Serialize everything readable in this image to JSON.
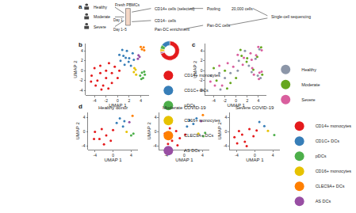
{
  "panel_labels": [
    "a",
    "b",
    "c",
    "d"
  ],
  "schematic": {
    "groups": [
      "Healthy",
      "Moderate",
      "Severe"
    ],
    "days": [
      "Day 1",
      "Day 1–5"
    ],
    "steps": [
      "Fresh PBMCs",
      "CD14+ cells (selected)",
      "CD14− cells",
      "Pan-DC enrichment",
      "Pooling",
      "20,000 cells",
      "Pan-DC cells",
      "Single-cell sequencing"
    ]
  },
  "chart_data": [
    {
      "type": "scatter",
      "marker": "circle",
      "grid": false,
      "x_label": "UMAP 1",
      "y_label": "UMAP 2",
      "xlim": [
        -5.5,
        5.5
      ],
      "ylim": [
        -5,
        5.5
      ],
      "xticks": [
        -4,
        -2,
        0,
        2,
        4
      ],
      "yticks": [
        -4,
        -2,
        0,
        2,
        4
      ],
      "series": [
        {
          "name": "CD14+ monocytes",
          "color": "#e41a1c",
          "values": [
            [
              -4.5,
              -1
            ],
            [
              -4,
              0.5
            ],
            [
              -3.5,
              -2
            ],
            [
              -3,
              -0.5
            ],
            [
              -3,
              1
            ],
            [
              -2.5,
              -3
            ],
            [
              -2,
              -1.5
            ],
            [
              -2,
              0
            ],
            [
              -1.5,
              1.5
            ],
            [
              -1,
              -2.5
            ],
            [
              -1,
              -0.5
            ],
            [
              -0.5,
              0.8
            ],
            [
              0,
              -1.5
            ],
            [
              0.3,
              0
            ],
            [
              -3.8,
              -3
            ],
            [
              -2.8,
              -3.8
            ],
            [
              -1.6,
              -3.6
            ],
            [
              -4.6,
              -2.2
            ]
          ]
        },
        {
          "name": "CD1C+ DCs",
          "color": "#377eb8",
          "values": [
            [
              0.5,
              2
            ],
            [
              1,
              3
            ],
            [
              1.2,
              1.2
            ],
            [
              1.6,
              4
            ],
            [
              2,
              2.5
            ],
            [
              2.3,
              1
            ],
            [
              2.6,
              3.5
            ],
            [
              0.8,
              4.2
            ],
            [
              1.9,
              1.8
            ],
            [
              2.8,
              2.2
            ],
            [
              0.3,
              3.2
            ],
            [
              1.4,
              2.6
            ]
          ]
        },
        {
          "name": "pDCs",
          "color": "#4daf4a",
          "values": [
            [
              3.9,
              -1
            ],
            [
              4.2,
              -0.4
            ],
            [
              4.4,
              -1.5
            ],
            [
              4.7,
              -0.8
            ],
            [
              4.1,
              -1.7
            ],
            [
              4.6,
              -0.2
            ]
          ]
        },
        {
          "name": "CD16+ monocytes",
          "color": "#e6c200",
          "values": [
            [
              2.8,
              -0.3
            ],
            [
              3.1,
              0.2
            ],
            [
              3.2,
              -0.8
            ],
            [
              2.9,
              0.5
            ]
          ]
        },
        {
          "name": "CLEC9A+ DCs",
          "color": "#ff7f00",
          "values": [
            [
              4.2,
              4.3
            ],
            [
              4.5,
              4.7
            ],
            [
              4,
              4.8
            ],
            [
              4.6,
              4.1
            ]
          ]
        },
        {
          "name": "AS DCs",
          "color": "#984ea3",
          "values": [
            [
              3.5,
              2.4
            ],
            [
              3.8,
              2.8
            ],
            [
              3.6,
              3.1
            ]
          ]
        }
      ]
    },
    {
      "type": "pie",
      "values": [
        70,
        15,
        7,
        4,
        2,
        2
      ],
      "colors": [
        "#e41a1c",
        "#377eb8",
        "#4daf4a",
        "#e6c200",
        "#ff7f00",
        "#984ea3"
      ]
    },
    {
      "type": "scatter",
      "marker": "circle",
      "grid": false,
      "x_label": "UMAP 1",
      "y_label": "UMAP 2",
      "xlim": [
        -5.5,
        5.5
      ],
      "ylim": [
        -5,
        5.5
      ],
      "xticks": [
        -4,
        -2,
        0,
        2,
        4
      ],
      "yticks": [
        -4,
        -2,
        0,
        2,
        4
      ],
      "series": [
        {
          "name": "Healthy",
          "color": "#8c96a8",
          "values": [
            [
              -4.5,
              -1
            ],
            [
              -3,
              -0.5
            ],
            [
              -2,
              -1.5
            ],
            [
              -1,
              -0.5
            ],
            [
              0.3,
              0
            ],
            [
              -2.8,
              -3.8
            ],
            [
              0.5,
              2
            ],
            [
              1.6,
              4
            ],
            [
              2.3,
              1
            ],
            [
              3.9,
              -1
            ],
            [
              4.4,
              -1.5
            ],
            [
              4.2,
              4.3
            ],
            [
              2.8,
              -0.3
            ],
            [
              3.5,
              2.4
            ]
          ]
        },
        {
          "name": "Moderate",
          "color": "#66a61e",
          "values": [
            [
              -4,
              0.5
            ],
            [
              -3.5,
              -2
            ],
            [
              -2,
              0
            ],
            [
              -1,
              -2.5
            ],
            [
              0,
              -1.5
            ],
            [
              -1.6,
              -3.6
            ],
            [
              1,
              3
            ],
            [
              2,
              2.5
            ],
            [
              0.8,
              4.2
            ],
            [
              1.9,
              1.8
            ],
            [
              4.7,
              -0.8
            ],
            [
              4.5,
              4.7
            ],
            [
              3.1,
              0.2
            ],
            [
              3.8,
              2.8
            ]
          ]
        },
        {
          "name": "Severe",
          "color": "#d95f9e",
          "values": [
            [
              -3,
              1
            ],
            [
              -2.5,
              -3
            ],
            [
              -1.5,
              1.5
            ],
            [
              -0.5,
              0.8
            ],
            [
              -3.8,
              -3
            ],
            [
              -4.6,
              -2.2
            ],
            [
              1.2,
              1.2
            ],
            [
              2.6,
              3.5
            ],
            [
              2.8,
              2.2
            ],
            [
              0.3,
              3.2
            ],
            [
              1.4,
              2.6
            ],
            [
              4.2,
              -0.4
            ],
            [
              4.1,
              -1.7
            ],
            [
              4.6,
              -0.2
            ],
            [
              4,
              4.8
            ],
            [
              4.6,
              4.1
            ],
            [
              3.2,
              -0.8
            ],
            [
              2.9,
              0.5
            ],
            [
              3.6,
              3.1
            ]
          ]
        }
      ]
    },
    {
      "type": "scatter",
      "marker": "circle",
      "grid": false,
      "title": "Healthy donor",
      "x_label": "UMAP 1",
      "y_label": "UMAP 2",
      "xlim": [
        -5.5,
        5.5
      ],
      "ylim": [
        -5,
        5.5
      ],
      "xticks": [
        -4,
        0,
        4
      ],
      "yticks": [
        -4,
        0,
        4
      ],
      "series": [
        {
          "name": "CD14+ monocytes",
          "color": "#e41a1c",
          "values": [
            [
              -4,
              0
            ],
            [
              -3,
              -2
            ],
            [
              -2.5,
              0.8
            ],
            [
              -1.5,
              -1
            ],
            [
              -0.5,
              -2.5
            ],
            [
              0,
              0.5
            ],
            [
              -2,
              -3.5
            ],
            [
              -4.2,
              -2
            ]
          ]
        },
        {
          "name": "CD1C+ DCs",
          "color": "#377eb8",
          "values": [
            [
              0.8,
              2.5
            ],
            [
              1.5,
              3.8
            ],
            [
              2.2,
              1.5
            ],
            [
              2.5,
              3
            ]
          ]
        },
        {
          "name": "pDCs",
          "color": "#4daf4a",
          "values": [
            [
              4,
              -1
            ],
            [
              4.5,
              -0.5
            ]
          ]
        },
        {
          "name": "CD16+ monocytes",
          "color": "#e6c200",
          "values": [
            [
              3,
              0
            ]
          ]
        },
        {
          "name": "CLEC9A+ DCs",
          "color": "#ff7f00",
          "values": [
            [
              4.3,
              4.5
            ]
          ]
        },
        {
          "name": "AS DCs",
          "color": "#984ea3",
          "values": [
            [
              3.6,
              2.7
            ]
          ]
        }
      ]
    },
    {
      "type": "scatter",
      "marker": "circle",
      "grid": false,
      "title": "Moderate COVID-19",
      "x_label": "UMAP 1",
      "y_label": "UMAP 2",
      "xlim": [
        -5.5,
        5.5
      ],
      "ylim": [
        -5,
        5.5
      ],
      "xticks": [
        -4,
        0,
        4
      ],
      "yticks": [
        -4,
        0,
        4
      ],
      "series": [
        {
          "name": "CD14+ monocytes",
          "color": "#e41a1c",
          "values": [
            [
              -4.3,
              -0.5
            ],
            [
              -3.2,
              1
            ],
            [
              -2.7,
              -2.5
            ],
            [
              -1.8,
              0.2
            ],
            [
              -1,
              -1.8
            ],
            [
              0.2,
              -0.8
            ],
            [
              -1.5,
              -3.8
            ],
            [
              -3.6,
              -3.4
            ]
          ]
        },
        {
          "name": "CD1C+ DCs",
          "color": "#377eb8",
          "values": [
            [
              0.6,
              1.5
            ],
            [
              1.2,
              3.2
            ],
            [
              2,
              2.2
            ],
            [
              2.7,
              3.8
            ]
          ]
        },
        {
          "name": "pDCs",
          "color": "#4daf4a",
          "values": [
            [
              4.2,
              -1.2
            ],
            [
              4.6,
              -0.3
            ]
          ]
        },
        {
          "name": "CD16+ monocytes",
          "color": "#e6c200",
          "values": [
            [
              3.1,
              -0.5
            ]
          ]
        },
        {
          "name": "CLEC9A+ DCs",
          "color": "#ff7f00",
          "values": [
            [
              4.1,
              4.7
            ]
          ]
        },
        {
          "name": "AS DCs",
          "color": "#984ea3",
          "values": [
            [
              3.7,
              3
            ]
          ]
        }
      ]
    },
    {
      "type": "scatter",
      "marker": "circle",
      "grid": false,
      "title": "Severe COVID-19",
      "x_label": "UMAP 1",
      "y_label": "UMAP 2",
      "xlim": [
        -5.5,
        5.5
      ],
      "ylim": [
        -5,
        5.5
      ],
      "xticks": [
        -4,
        0,
        4
      ],
      "yticks": [
        -4,
        0,
        4
      ],
      "series": [
        {
          "name": "CD14+ monocytes",
          "color": "#e41a1c",
          "values": [
            [
              -4.5,
              -1.5
            ],
            [
              -3.5,
              0.2
            ],
            [
              -2.2,
              -2.8
            ],
            [
              -1.2,
              0.8
            ],
            [
              -0.3,
              -1.2
            ],
            [
              -2.8,
              -0.8
            ],
            [
              -1.8,
              -4
            ],
            [
              -3.9,
              -3.2
            ],
            [
              0.4,
              0.4
            ]
          ]
        },
        {
          "name": "CD1C+ DCs",
          "color": "#377eb8",
          "values": [
            [
              1,
              2.8
            ],
            [
              2.1,
              1.6
            ]
          ]
        },
        {
          "name": "pDCs",
          "color": "#4daf4a",
          "values": [
            [
              4.3,
              -0.9
            ]
          ]
        },
        {
          "name": "CD16+ monocytes",
          "color": "#e6c200",
          "values": [
            [
              2.9,
              0.3
            ]
          ]
        }
      ]
    }
  ]
}
